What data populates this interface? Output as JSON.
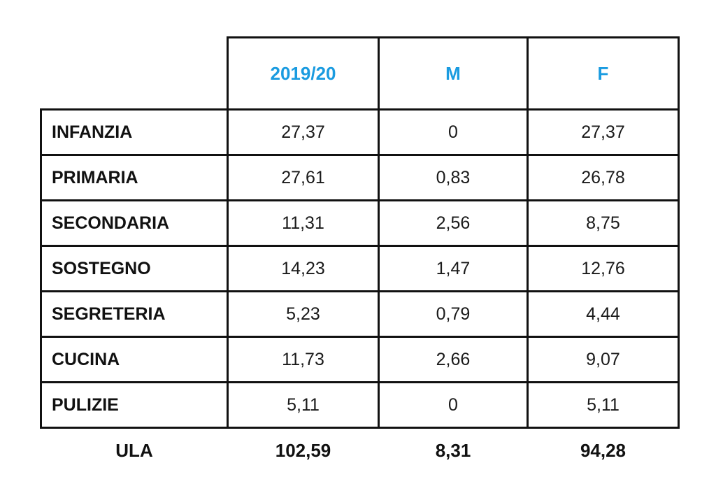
{
  "table": {
    "headers": [
      "",
      "2019/20",
      "M",
      "F"
    ],
    "rows": [
      {
        "label": "INFANZIA",
        "total": "27,37",
        "m": "0",
        "f": "27,37"
      },
      {
        "label": "PRIMARIA",
        "total": "27,61",
        "m": "0,83",
        "f": "26,78"
      },
      {
        "label": "SECONDARIA",
        "total": "11,31",
        "m": "2,56",
        "f": "8,75"
      },
      {
        "label": "SOSTEGNO",
        "total": "14,23",
        "m": "1,47",
        "f": "12,76"
      },
      {
        "label": "SEGRETERIA",
        "total": "5,23",
        "m": "0,79",
        "f": "4,44"
      },
      {
        "label": "CUCINA",
        "total": "11,73",
        "m": "2,66",
        "f": "9,07"
      },
      {
        "label": "PULIZIE",
        "total": "5,11",
        "m": "0",
        "f": "5,11"
      }
    ],
    "footer": {
      "label": "ULA",
      "total": "102,59",
      "m": "8,31",
      "f": "94,28"
    }
  },
  "colors": {
    "header_accent": "#1a9be0",
    "text": "#111111",
    "border": "#111111"
  }
}
